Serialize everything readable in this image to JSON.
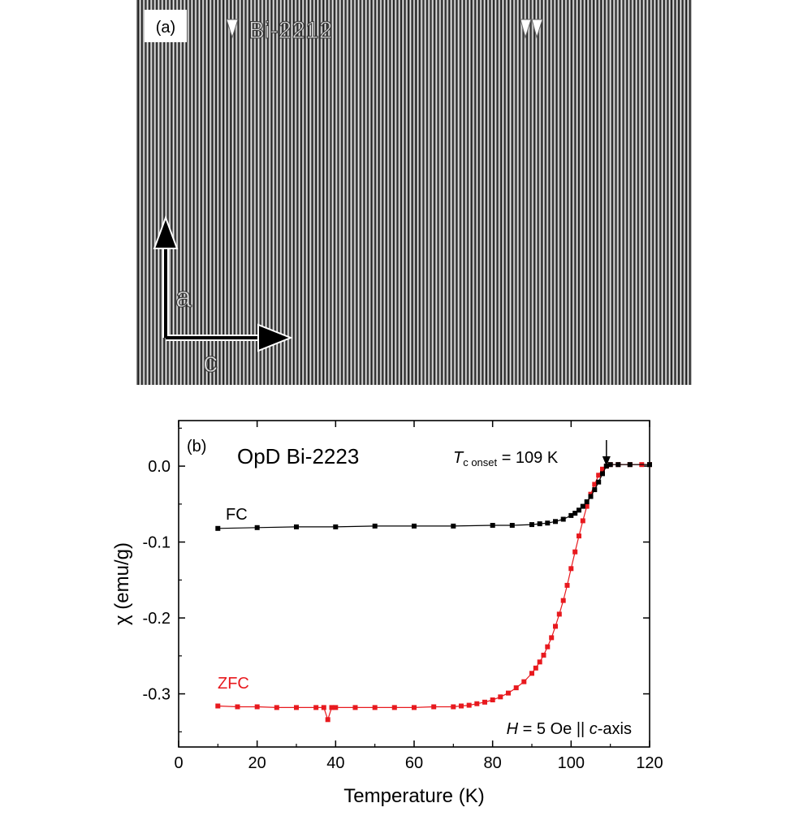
{
  "panel_a": {
    "label": "(a)",
    "title": "Bi-2212",
    "axis_up": "a",
    "axis_right": "c",
    "fringe_count": 150
  },
  "chart_data": {
    "type": "scatter",
    "panel_label": "(b)",
    "title": "OpD Bi-2223",
    "xlabel": "Temperature (K)",
    "ylabel": "χ (emu/g)",
    "xlim": [
      0,
      120
    ],
    "ylim": [
      -0.37,
      0.06
    ],
    "xticks": [
      0,
      20,
      40,
      60,
      80,
      100,
      120
    ],
    "yticks": [
      0.0,
      -0.1,
      -0.2,
      -0.3
    ],
    "ytick_labels": [
      "0.0",
      "-0.1",
      "-0.2",
      "-0.3"
    ],
    "grid": false,
    "annotations": {
      "tc_symbol": "T",
      "tc_subscript": "c onset",
      "tc_value": " = 109 K",
      "tc_arrow_x": 109,
      "field_symbol": "H",
      "field_mid": " = 5 Oe || ",
      "field_italic": "c",
      "field_end": "-axis"
    },
    "series": [
      {
        "name": "FC",
        "color": "#000000",
        "x": [
          10,
          20,
          30,
          40,
          50,
          60,
          70,
          80,
          85,
          90,
          92,
          94,
          96,
          98,
          100,
          101,
          102,
          103,
          104,
          105,
          106,
          107,
          108,
          109,
          110,
          112,
          115,
          120
        ],
        "y": [
          -0.082,
          -0.081,
          -0.08,
          -0.08,
          -0.079,
          -0.079,
          -0.079,
          -0.078,
          -0.078,
          -0.077,
          -0.076,
          -0.075,
          -0.073,
          -0.07,
          -0.065,
          -0.062,
          -0.058,
          -0.053,
          -0.047,
          -0.04,
          -0.031,
          -0.021,
          -0.01,
          0.0,
          0.002,
          0.002,
          0.002,
          0.002
        ]
      },
      {
        "name": "ZFC",
        "color": "#e8191e",
        "x": [
          10,
          15,
          20,
          25,
          30,
          35,
          37,
          38,
          39,
          40,
          45,
          50,
          55,
          60,
          65,
          70,
          72,
          74,
          76,
          78,
          80,
          82,
          84,
          86,
          88,
          90,
          91,
          92,
          93,
          94,
          95,
          96,
          97,
          98,
          99,
          100,
          101,
          102,
          103,
          104,
          105,
          106,
          107,
          108,
          109,
          110,
          112,
          115,
          118,
          120
        ],
        "y": [
          -0.316,
          -0.317,
          -0.317,
          -0.318,
          -0.318,
          -0.318,
          -0.318,
          -0.334,
          -0.318,
          -0.318,
          -0.318,
          -0.318,
          -0.318,
          -0.318,
          -0.317,
          -0.317,
          -0.316,
          -0.315,
          -0.313,
          -0.311,
          -0.308,
          -0.304,
          -0.299,
          -0.292,
          -0.284,
          -0.273,
          -0.266,
          -0.258,
          -0.249,
          -0.238,
          -0.226,
          -0.211,
          -0.195,
          -0.177,
          -0.157,
          -0.135,
          -0.113,
          -0.092,
          -0.072,
          -0.053,
          -0.037,
          -0.024,
          -0.012,
          -0.004,
          0.0,
          0.002,
          0.002,
          0.002,
          0.002,
          0.002
        ]
      }
    ]
  }
}
